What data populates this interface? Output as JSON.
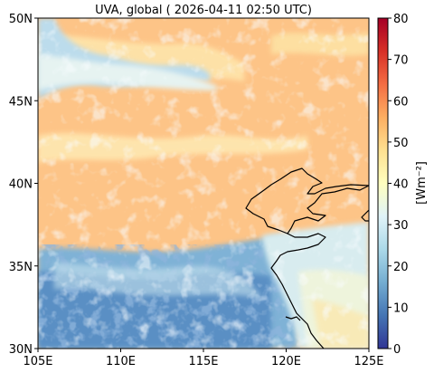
{
  "title": "UVA, global ( 2026-04-11 02:50 UTC)",
  "map": {
    "lon_range": [
      105,
      125
    ],
    "lat_range": [
      30,
      50
    ],
    "lon_ticks": [
      {
        "value": 105,
        "label": "105E"
      },
      {
        "value": 110,
        "label": "110E"
      },
      {
        "value": 115,
        "label": "115E"
      },
      {
        "value": 120,
        "label": "120E"
      },
      {
        "value": 125,
        "label": "125E"
      }
    ],
    "lat_ticks": [
      {
        "value": 30,
        "label": "30N"
      },
      {
        "value": 35,
        "label": "35N"
      },
      {
        "value": 40,
        "label": "40N"
      },
      {
        "value": 45,
        "label": "45N"
      },
      {
        "value": 50,
        "label": "50N"
      }
    ],
    "field": {
      "dominant_value": 52,
      "regions": [
        {
          "name": "clear-sky-north",
          "lon": [
            105,
            125
          ],
          "lat": [
            35.5,
            50
          ],
          "value": 52
        },
        {
          "name": "south-cloud-band",
          "lon": [
            105,
            118
          ],
          "lat": [
            30,
            35.5
          ],
          "value": 20
        },
        {
          "name": "north-cloud-strip",
          "lon": [
            105,
            111
          ],
          "lat": [
            45.5,
            49.5
          ],
          "value": 30
        },
        {
          "name": "southeast-sea",
          "lon": [
            120,
            125
          ],
          "lat": [
            30,
            36
          ],
          "value": 35
        }
      ]
    },
    "colormap": "RdYlBu_r"
  },
  "colorbar": {
    "label": "[Wm⁻²]",
    "min": 0,
    "max": 80,
    "ticks": [
      {
        "value": 0,
        "label": "0"
      },
      {
        "value": 10,
        "label": "10"
      },
      {
        "value": 20,
        "label": "20"
      },
      {
        "value": 30,
        "label": "30"
      },
      {
        "value": 40,
        "label": "40"
      },
      {
        "value": 50,
        "label": "50"
      },
      {
        "value": 60,
        "label": "60"
      },
      {
        "value": 70,
        "label": "70"
      },
      {
        "value": 80,
        "label": "80"
      }
    ],
    "colors": [
      "#313695",
      "#4575b4",
      "#74add1",
      "#abd9e9",
      "#e0f3f8",
      "#ffffbf",
      "#fee090",
      "#fdae61",
      "#f46d43",
      "#d73027",
      "#a50026"
    ]
  }
}
